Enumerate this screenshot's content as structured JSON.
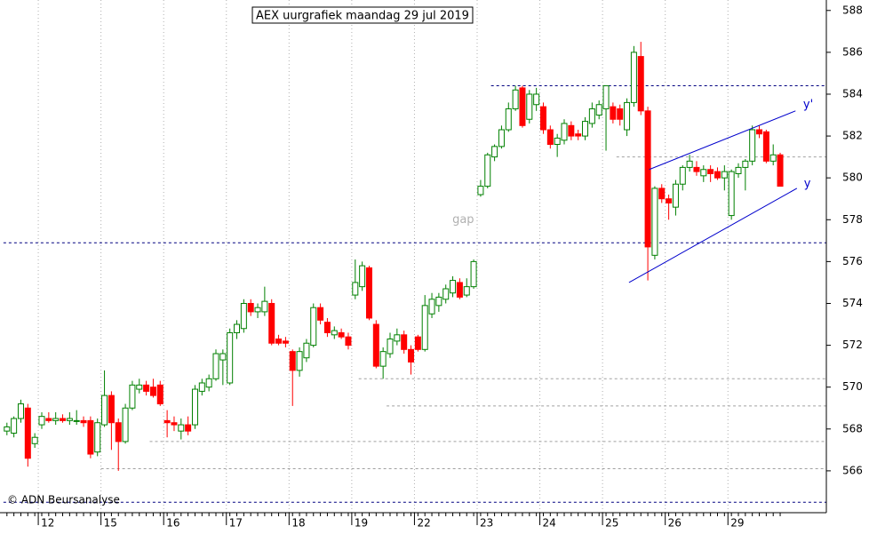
{
  "chart_data": {
    "type": "candlestick",
    "title": "AEX uurgrafiek maandag 29 jul 2019",
    "credit": "© ADN Beursanalyse",
    "categories": [
      null,
      null,
      null,
      null,
      null,
      "12",
      null,
      null,
      null,
      null,
      null,
      null,
      null,
      null,
      "15",
      null,
      null,
      null,
      null,
      null,
      null,
      null,
      null,
      "16",
      null,
      null,
      null,
      null,
      null,
      null,
      null,
      null,
      "17",
      null,
      null,
      null,
      null,
      null,
      null,
      null,
      null,
      "18",
      null,
      null,
      null,
      null,
      null,
      null,
      null,
      null,
      "19",
      null,
      null,
      null,
      null,
      null,
      null,
      null,
      null,
      "22",
      null,
      null,
      null,
      null,
      null,
      null,
      null,
      null,
      "23",
      null,
      null,
      null,
      null,
      null,
      null,
      null,
      null,
      "24",
      null,
      null,
      null,
      null,
      null,
      null,
      null,
      null,
      "25",
      null,
      null,
      null,
      null,
      null,
      null,
      null,
      null,
      "26",
      null,
      null,
      null,
      null,
      null,
      null,
      null,
      null,
      "29",
      null,
      null,
      null,
      null,
      null,
      null,
      null
    ],
    "ohlc": [
      [
        567.9,
        568.3,
        567.7,
        568.1
      ],
      [
        567.8,
        568.6,
        567.6,
        568.5
      ],
      [
        568.5,
        569.4,
        568.3,
        569.2
      ],
      [
        569.0,
        569.2,
        566.2,
        566.6
      ],
      [
        567.3,
        567.8,
        567.1,
        567.6
      ],
      [
        568.2,
        568.8,
        568.0,
        568.6
      ],
      [
        568.5,
        568.8,
        568.3,
        568.4
      ],
      [
        568.4,
        568.8,
        568.2,
        568.5
      ],
      [
        568.5,
        568.7,
        568.3,
        568.4
      ],
      [
        568.4,
        568.8,
        568.2,
        568.5
      ],
      [
        568.4,
        568.9,
        568.2,
        568.4
      ],
      [
        568.4,
        568.6,
        568.1,
        568.3
      ],
      [
        568.4,
        568.6,
        566.6,
        566.8
      ],
      [
        566.9,
        568.5,
        566.7,
        568.3
      ],
      [
        568.2,
        570.8,
        568.1,
        569.6
      ],
      [
        569.6,
        569.8,
        567.0,
        568.3
      ],
      [
        568.3,
        568.5,
        566.0,
        567.4
      ],
      [
        567.4,
        569.2,
        567.3,
        569.0
      ],
      [
        569.0,
        570.3,
        568.9,
        570.1
      ],
      [
        569.9,
        570.4,
        569.7,
        570.1
      ],
      [
        570.1,
        570.3,
        569.6,
        569.8
      ],
      [
        570.0,
        570.4,
        569.5,
        569.6
      ],
      [
        570.1,
        570.3,
        569.1,
        569.2
      ],
      [
        568.4,
        568.9,
        567.6,
        568.3
      ],
      [
        568.3,
        568.6,
        567.9,
        568.2
      ],
      [
        567.9,
        568.5,
        567.5,
        568.2
      ],
      [
        568.2,
        568.6,
        567.7,
        567.9
      ],
      [
        568.2,
        570.1,
        568.0,
        569.9
      ],
      [
        569.8,
        570.4,
        569.6,
        570.2
      ],
      [
        570.0,
        570.6,
        569.8,
        570.4
      ],
      [
        570.4,
        571.8,
        570.3,
        571.6
      ],
      [
        571.3,
        571.8,
        570.1,
        571.6
      ],
      [
        570.2,
        572.8,
        570.1,
        572.6
      ],
      [
        572.6,
        573.2,
        572.3,
        573.0
      ],
      [
        572.8,
        574.2,
        572.6,
        574.0
      ],
      [
        574.0,
        574.2,
        573.4,
        573.6
      ],
      [
        573.6,
        574.0,
        573.3,
        573.8
      ],
      [
        573.6,
        574.8,
        573.4,
        574.1
      ],
      [
        574.0,
        574.2,
        572.0,
        572.1
      ],
      [
        572.3,
        572.5,
        572.0,
        572.1
      ],
      [
        572.2,
        572.4,
        571.9,
        572.1
      ],
      [
        571.7,
        571.8,
        569.1,
        570.8
      ],
      [
        570.8,
        571.9,
        570.5,
        571.7
      ],
      [
        571.4,
        572.3,
        571.2,
        572.1
      ],
      [
        572.0,
        574.0,
        571.9,
        573.8
      ],
      [
        573.8,
        574.0,
        573.0,
        573.2
      ],
      [
        573.1,
        573.3,
        572.4,
        572.6
      ],
      [
        572.5,
        572.9,
        572.3,
        572.7
      ],
      [
        572.6,
        572.8,
        572.3,
        572.4
      ],
      [
        572.4,
        572.6,
        571.8,
        572.0
      ],
      [
        574.4,
        576.1,
        574.2,
        575.0
      ],
      [
        574.8,
        576.0,
        574.6,
        575.8
      ],
      [
        575.7,
        575.8,
        573.2,
        573.3
      ],
      [
        573.0,
        573.2,
        570.9,
        571.0
      ],
      [
        571.0,
        571.9,
        570.4,
        571.7
      ],
      [
        571.6,
        572.6,
        571.4,
        572.3
      ],
      [
        572.2,
        572.8,
        572.0,
        572.5
      ],
      [
        572.5,
        572.7,
        571.6,
        571.8
      ],
      [
        571.8,
        572.0,
        570.6,
        571.2
      ],
      [
        572.4,
        572.5,
        571.7,
        571.8
      ],
      [
        571.8,
        574.4,
        571.7,
        573.9
      ],
      [
        573.5,
        574.5,
        573.3,
        574.2
      ],
      [
        573.9,
        574.5,
        573.6,
        574.3
      ],
      [
        574.2,
        574.9,
        574.0,
        574.7
      ],
      [
        574.5,
        575.3,
        574.3,
        575.1
      ],
      [
        575.0,
        575.2,
        574.2,
        574.3
      ],
      [
        574.4,
        575.2,
        574.3,
        574.8
      ],
      [
        574.8,
        576.1,
        574.7,
        576.0
      ],
      [
        579.2,
        579.9,
        579.1,
        579.6
      ],
      [
        579.6,
        581.2,
        579.5,
        581.1
      ],
      [
        581.0,
        581.6,
        580.8,
        581.5
      ],
      [
        581.5,
        582.5,
        581.4,
        582.3
      ],
      [
        582.3,
        583.6,
        582.2,
        583.3
      ],
      [
        583.3,
        584.4,
        583.2,
        584.2
      ],
      [
        584.3,
        584.4,
        582.4,
        582.5
      ],
      [
        582.8,
        584.2,
        582.6,
        584.0
      ],
      [
        583.5,
        584.3,
        583.2,
        584.0
      ],
      [
        583.4,
        583.6,
        582.1,
        582.3
      ],
      [
        582.3,
        582.5,
        581.4,
        581.6
      ],
      [
        581.6,
        582.1,
        581.0,
        581.9
      ],
      [
        581.8,
        582.8,
        581.6,
        582.6
      ],
      [
        582.5,
        582.7,
        581.8,
        582.0
      ],
      [
        582.1,
        582.3,
        581.8,
        582.0
      ],
      [
        582.0,
        582.9,
        581.8,
        582.7
      ],
      [
        582.6,
        583.6,
        582.4,
        583.3
      ],
      [
        583.0,
        583.7,
        582.8,
        583.5
      ],
      [
        583.3,
        584.4,
        581.3,
        584.4
      ],
      [
        583.4,
        583.6,
        582.6,
        582.8
      ],
      [
        583.3,
        583.5,
        582.5,
        582.8
      ],
      [
        582.3,
        583.8,
        582.0,
        583.6
      ],
      [
        583.6,
        586.3,
        583.4,
        586.0
      ],
      [
        585.8,
        586.5,
        583.0,
        583.2
      ],
      [
        583.2,
        583.4,
        575.1,
        576.7
      ],
      [
        576.3,
        579.6,
        576.1,
        579.5
      ],
      [
        579.5,
        579.7,
        578.8,
        579.0
      ],
      [
        579.0,
        579.2,
        578.0,
        578.8
      ],
      [
        578.6,
        579.9,
        578.2,
        579.7
      ],
      [
        579.7,
        580.6,
        579.4,
        580.5
      ],
      [
        580.5,
        581.1,
        580.3,
        580.8
      ],
      [
        580.5,
        580.8,
        580.1,
        580.3
      ],
      [
        580.1,
        580.6,
        579.8,
        580.4
      ],
      [
        580.4,
        580.6,
        579.8,
        580.2
      ],
      [
        580.3,
        580.5,
        579.9,
        580.0
      ],
      [
        580.0,
        580.6,
        579.4,
        580.3
      ],
      [
        578.2,
        580.4,
        578.0,
        580.3
      ],
      [
        580.2,
        580.7,
        580.0,
        580.5
      ],
      [
        580.5,
        580.9,
        579.4,
        580.8
      ],
      [
        580.8,
        582.5,
        580.6,
        582.3
      ],
      [
        582.3,
        582.5,
        581.9,
        582.1
      ],
      [
        582.2,
        582.3,
        580.7,
        580.8
      ],
      [
        580.8,
        581.6,
        580.6,
        581.1
      ],
      [
        581.1,
        581.2,
        579.6,
        579.6
      ]
    ],
    "up_color": "#008000",
    "down_color": "#ff0000",
    "ylim": [
      564,
      588.5
    ],
    "yticks": [
      566,
      568,
      570,
      572,
      574,
      576,
      578,
      580,
      582,
      584,
      586,
      588
    ],
    "grid": true,
    "reference_lines": [
      {
        "value": 584.4,
        "from": 70,
        "color": "#000080"
      },
      {
        "value": 576.9,
        "from": 0,
        "color": "#000080"
      },
      {
        "value": 564.5,
        "from": 0,
        "color": "#000080"
      },
      {
        "value": 581.0,
        "from": 88,
        "color": "#a0a0a0"
      },
      {
        "value": 570.4,
        "from": 51,
        "color": "#a0a0a0"
      },
      {
        "value": 569.1,
        "from": 55,
        "color": "#a0a0a0"
      },
      {
        "value": 567.4,
        "from": 21,
        "color": "#a0a0a0"
      },
      {
        "value": 566.1,
        "from": 14,
        "color": "#a0a0a0"
      }
    ],
    "trendlines": [
      {
        "name": "y'",
        "x": [
          92.2,
          113.2
        ],
        "y": [
          580.4,
          583.2
        ],
        "label_x": 114.3,
        "label_y": 583.5,
        "color": "#0000cc"
      },
      {
        "name": "y",
        "x": [
          89.3,
          113.4
        ],
        "y": [
          575.0,
          579.5
        ],
        "label_x": 114.4,
        "label_y": 579.7,
        "color": "#0000cc"
      }
    ],
    "annotations": [
      {
        "text": "gap",
        "x": 65.5,
        "y": 578.0
      }
    ]
  }
}
